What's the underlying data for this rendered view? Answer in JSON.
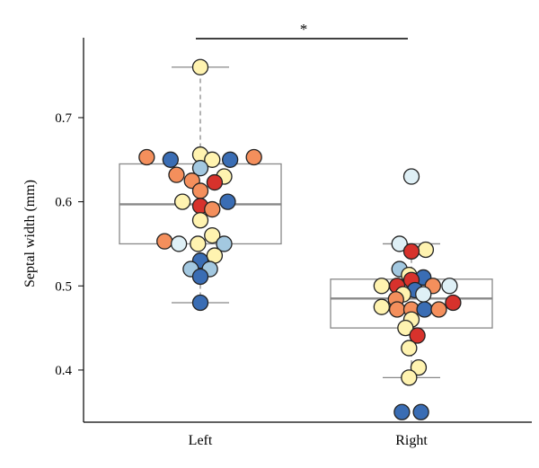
{
  "chart_data": {
    "type": "box-swarm",
    "title": "",
    "xlabel": "",
    "ylabel": "Septal width (mm)",
    "ylim": [
      0.338,
      0.795
    ],
    "yticks": [
      0.4,
      0.5,
      0.6,
      0.7
    ],
    "categories": [
      "Left",
      "Right"
    ],
    "significance": {
      "from": "Left",
      "to": "Right",
      "label": "*"
    },
    "colors": {
      "dark_blue": "#3a6db4",
      "light_blue": "#a3c8e0",
      "pale_blue": "#dff0f6",
      "cream": "#fff3b0",
      "orange": "#f48f5c",
      "red": "#d7322c",
      "box_grey": "#888888"
    },
    "groups": [
      {
        "name": "Left",
        "box": {
          "q1": 0.55,
          "median": 0.597,
          "q3": 0.645,
          "whisker_low": 0.48,
          "whisker_high": 0.76
        },
        "points": [
          {
            "y": 0.76,
            "c": "cream",
            "dx": 0
          },
          {
            "y": 0.656,
            "c": "cream",
            "dx": 0
          },
          {
            "y": 0.653,
            "c": "orange",
            "dx": -4.5
          },
          {
            "y": 0.653,
            "c": "orange",
            "dx": 4.5
          },
          {
            "y": 0.65,
            "c": "dark_blue",
            "dx": -2.5
          },
          {
            "y": 0.65,
            "c": "cream",
            "dx": 1
          },
          {
            "y": 0.65,
            "c": "dark_blue",
            "dx": 2.5
          },
          {
            "y": 0.64,
            "c": "light_blue",
            "dx": 0
          },
          {
            "y": 0.632,
            "c": "orange",
            "dx": -2
          },
          {
            "y": 0.63,
            "c": "cream",
            "dx": 2
          },
          {
            "y": 0.625,
            "c": "orange",
            "dx": -0.7
          },
          {
            "y": 0.623,
            "c": "red",
            "dx": 1.2
          },
          {
            "y": 0.613,
            "c": "orange",
            "dx": 0
          },
          {
            "y": 0.6,
            "c": "cream",
            "dx": -1.5
          },
          {
            "y": 0.6,
            "c": "dark_blue",
            "dx": 2.3
          },
          {
            "y": 0.595,
            "c": "red",
            "dx": 0
          },
          {
            "y": 0.591,
            "c": "orange",
            "dx": 1
          },
          {
            "y": 0.578,
            "c": "cream",
            "dx": 0
          },
          {
            "y": 0.56,
            "c": "cream",
            "dx": 1
          },
          {
            "y": 0.553,
            "c": "orange",
            "dx": -3
          },
          {
            "y": 0.55,
            "c": "pale_blue",
            "dx": -1.8
          },
          {
            "y": 0.55,
            "c": "cream",
            "dx": -0.2
          },
          {
            "y": 0.55,
            "c": "light_blue",
            "dx": 2
          },
          {
            "y": 0.536,
            "c": "cream",
            "dx": 1.2
          },
          {
            "y": 0.53,
            "c": "dark_blue",
            "dx": 0
          },
          {
            "y": 0.52,
            "c": "light_blue",
            "dx": -0.8
          },
          {
            "y": 0.52,
            "c": "light_blue",
            "dx": 0.8
          },
          {
            "y": 0.511,
            "c": "dark_blue",
            "dx": 0
          },
          {
            "y": 0.48,
            "c": "dark_blue",
            "dx": 0
          }
        ]
      },
      {
        "name": "Right",
        "box": {
          "q1": 0.45,
          "median": 0.485,
          "q3": 0.508,
          "whisker_low": 0.391,
          "whisker_high": 0.55
        },
        "points": [
          {
            "y": 0.63,
            "c": "pale_blue",
            "dx": 0
          },
          {
            "y": 0.55,
            "c": "pale_blue",
            "dx": -1
          },
          {
            "y": 0.543,
            "c": "cream",
            "dx": 1.2
          },
          {
            "y": 0.541,
            "c": "red",
            "dx": 0
          },
          {
            "y": 0.52,
            "c": "light_blue",
            "dx": -1
          },
          {
            "y": 0.513,
            "c": "cream",
            "dx": -0.2
          },
          {
            "y": 0.51,
            "c": "dark_blue",
            "dx": 1
          },
          {
            "y": 0.507,
            "c": "red",
            "dx": 0
          },
          {
            "y": 0.5,
            "c": "cream",
            "dx": -2.5
          },
          {
            "y": 0.5,
            "c": "red",
            "dx": -1.2
          },
          {
            "y": 0.5,
            "c": "orange",
            "dx": 1.8
          },
          {
            "y": 0.5,
            "c": "pale_blue",
            "dx": 3.2
          },
          {
            "y": 0.495,
            "c": "dark_blue",
            "dx": 0.3
          },
          {
            "y": 0.49,
            "c": "cream",
            "dx": -0.7
          },
          {
            "y": 0.49,
            "c": "pale_blue",
            "dx": 1
          },
          {
            "y": 0.484,
            "c": "orange",
            "dx": -1.3
          },
          {
            "y": 0.48,
            "c": "red",
            "dx": 3.5
          },
          {
            "y": 0.475,
            "c": "cream",
            "dx": -2.5
          },
          {
            "y": 0.472,
            "c": "orange",
            "dx": -1.2
          },
          {
            "y": 0.472,
            "c": "orange",
            "dx": 0
          },
          {
            "y": 0.472,
            "c": "dark_blue",
            "dx": 1.1
          },
          {
            "y": 0.472,
            "c": "orange",
            "dx": 2.3
          },
          {
            "y": 0.46,
            "c": "cream",
            "dx": 0
          },
          {
            "y": 0.45,
            "c": "cream",
            "dx": -0.5
          },
          {
            "y": 0.441,
            "c": "red",
            "dx": 0.5
          },
          {
            "y": 0.426,
            "c": "cream",
            "dx": -0.2
          },
          {
            "y": 0.403,
            "c": "cream",
            "dx": 0.6
          },
          {
            "y": 0.391,
            "c": "cream",
            "dx": -0.2
          },
          {
            "y": 0.35,
            "c": "dark_blue",
            "dx": -0.8
          },
          {
            "y": 0.35,
            "c": "dark_blue",
            "dx": 0.8
          }
        ]
      }
    ]
  }
}
